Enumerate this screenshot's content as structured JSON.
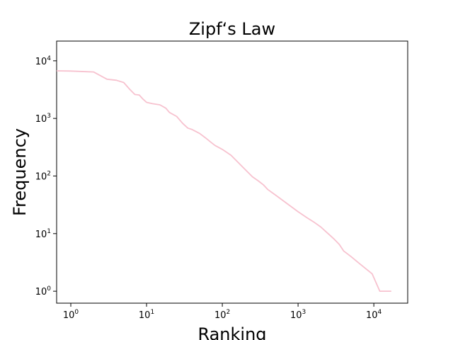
{
  "chart_data": {
    "type": "line",
    "title": "Zipf‘s Law",
    "xlabel": "Ranking",
    "ylabel": "Frequency",
    "xscale": "log",
    "yscale": "log",
    "xlim": [
      0.65,
      28000
    ],
    "ylim": [
      0.62,
      22000
    ],
    "grid": false,
    "legend": "none",
    "series_color": "#f7c2cf",
    "x_ticks": [
      {
        "base": "10",
        "exp": "0",
        "value": 1
      },
      {
        "base": "10",
        "exp": "1",
        "value": 10
      },
      {
        "base": "10",
        "exp": "2",
        "value": 100
      },
      {
        "base": "10",
        "exp": "3",
        "value": 1000
      },
      {
        "base": "10",
        "exp": "4",
        "value": 10000
      }
    ],
    "y_ticks": [
      {
        "base": "10",
        "exp": "0",
        "value": 1
      },
      {
        "base": "10",
        "exp": "1",
        "value": 10
      },
      {
        "base": "10",
        "exp": "2",
        "value": 100
      },
      {
        "base": "10",
        "exp": "3",
        "value": 1000
      },
      {
        "base": "10",
        "exp": "4",
        "value": 10000
      }
    ],
    "series": [
      {
        "x": [
          0.65,
          1,
          2,
          3,
          4,
          5,
          6,
          7,
          8,
          9,
          10,
          12,
          15,
          18,
          20,
          25,
          30,
          35,
          40,
          50,
          60,
          70,
          80,
          100,
          130,
          150,
          200,
          250,
          300,
          350,
          400,
          500,
          700,
          1000,
          1300,
          1600,
          2000,
          2300,
          2600,
          3000,
          3500,
          4000,
          5000,
          6500,
          9500,
          12000,
          17000
        ],
        "y": [
          6700,
          6650,
          6400,
          4800,
          4600,
          4200,
          3200,
          2600,
          2550,
          2150,
          1900,
          1800,
          1720,
          1500,
          1270,
          1080,
          820,
          680,
          640,
          550,
          460,
          390,
          340,
          290,
          230,
          190,
          130,
          97,
          82,
          70,
          58,
          47,
          34,
          24,
          19,
          16,
          13,
          11,
          9.5,
          8,
          6.5,
          5,
          4,
          3,
          2,
          1,
          1
        ]
      }
    ]
  }
}
